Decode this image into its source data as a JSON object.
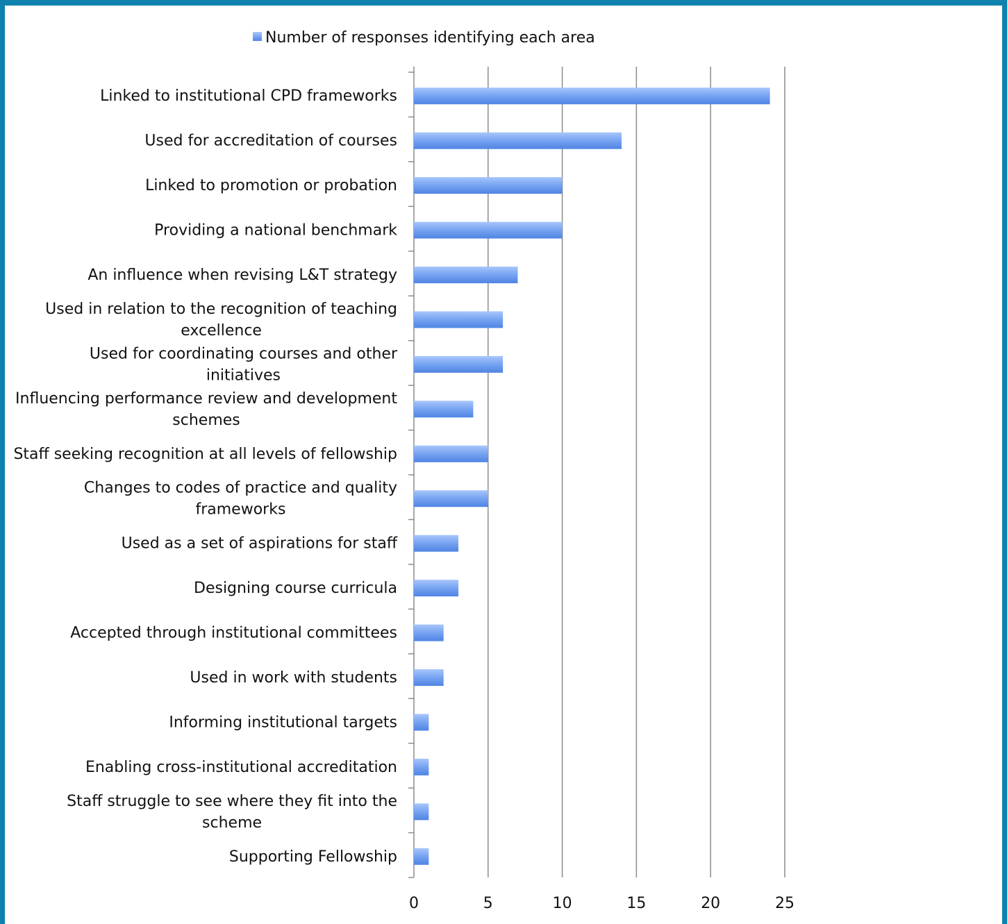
{
  "chart_data": {
    "type": "bar",
    "orientation": "horizontal",
    "legend": {
      "position": "top",
      "label": "Number of responses identifying each area"
    },
    "series": [
      {
        "name": "Number of responses identifying each area",
        "color": "#6e9ef0",
        "values": [
          24,
          14,
          10,
          10,
          7,
          6,
          6,
          4,
          5,
          5,
          3,
          3,
          2,
          2,
          1,
          1,
          1,
          1
        ]
      }
    ],
    "categories": [
      [
        "Linked to institutional CPD frameworks"
      ],
      [
        "Used for accreditation of courses"
      ],
      [
        "Linked to promotion or probation"
      ],
      [
        "Providing a national benchmark"
      ],
      [
        "An influence when revising L&T strategy"
      ],
      [
        "Used in relation to the recognition of teaching",
        "excellence"
      ],
      [
        "Used for coordinating courses and other",
        "initiatives"
      ],
      [
        "Influencing performance review and development",
        "schemes"
      ],
      [
        "Staff seeking recognition at all levels of fellowship"
      ],
      [
        "Changes to codes of practice and quality",
        "frameworks"
      ],
      [
        "Used as a set of aspirations for staff"
      ],
      [
        "Designing course curricula"
      ],
      [
        "Accepted through institutional committees"
      ],
      [
        "Used in work with students"
      ],
      [
        "Informing institutional targets"
      ],
      [
        "Enabling cross-institutional accreditation"
      ],
      [
        "Staff struggle to see where they fit into the",
        "scheme"
      ],
      [
        "Supporting Fellowship"
      ]
    ],
    "xlim": [
      0,
      25
    ],
    "xticks": [
      0,
      5,
      10,
      15,
      20,
      25
    ],
    "grid": "vertical",
    "border_color": "#0e82ad"
  }
}
